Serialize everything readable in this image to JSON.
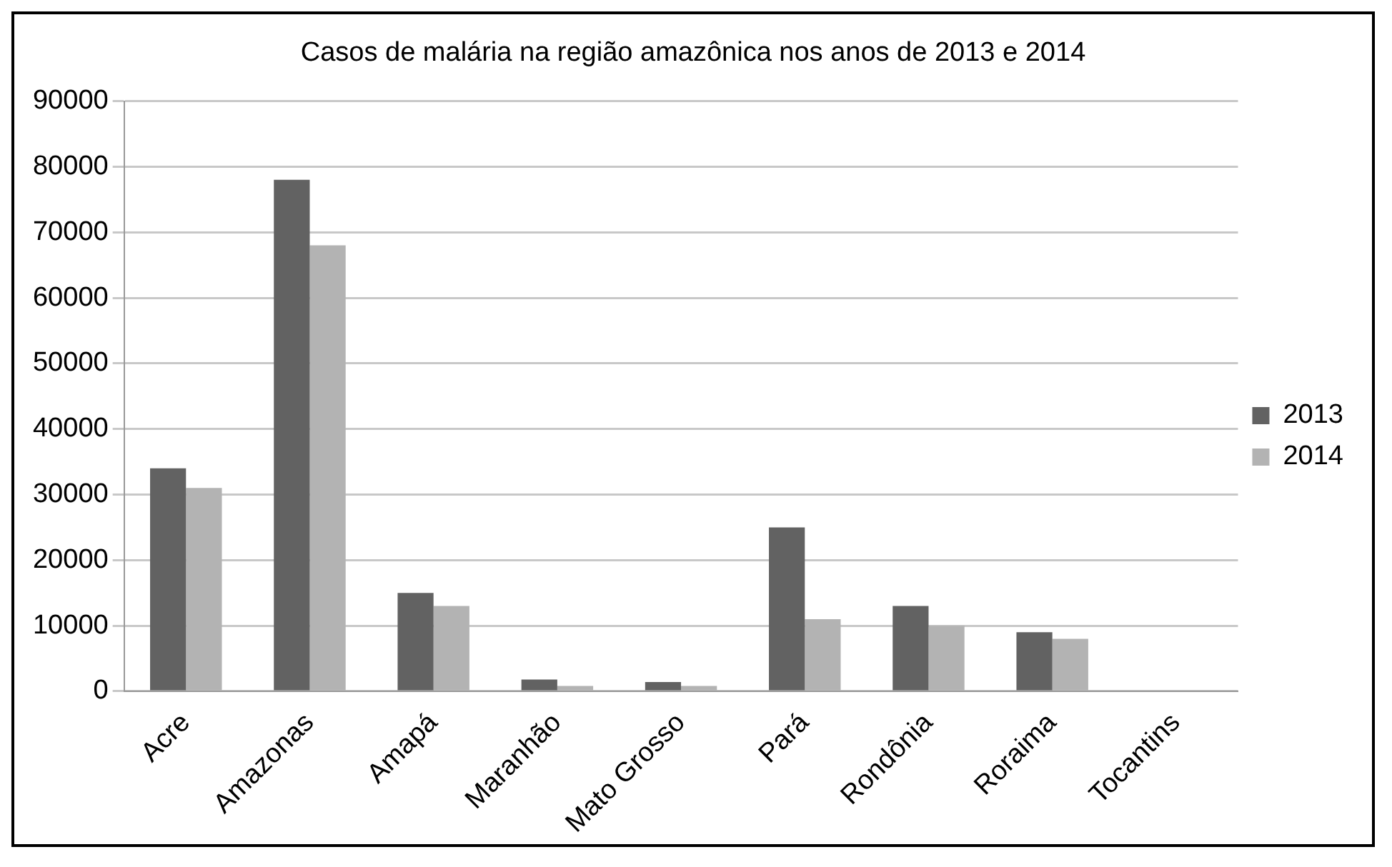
{
  "chart_data": {
    "type": "bar",
    "title": "Casos de malária na região amazônica nos anos de 2013 e 2014",
    "categories": [
      "Acre",
      "Amazonas",
      "Amapá",
      "Maranhão",
      "Mato Grosso",
      "Pará",
      "Rondônia",
      "Roraima",
      "Tocantins"
    ],
    "series": [
      {
        "name": "2013",
        "color": "#626262",
        "values": [
          34000,
          78000,
          15000,
          1800,
          1400,
          25000,
          13000,
          9000,
          0
        ]
      },
      {
        "name": "2014",
        "color": "#b3b3b3",
        "values": [
          31000,
          68000,
          13000,
          800,
          800,
          11000,
          10000,
          8000,
          0
        ]
      }
    ],
    "ylim": [
      0,
      90000
    ],
    "yticks": [
      0,
      10000,
      20000,
      30000,
      40000,
      50000,
      60000,
      70000,
      80000,
      90000
    ],
    "grid": "y",
    "legend": "right"
  }
}
